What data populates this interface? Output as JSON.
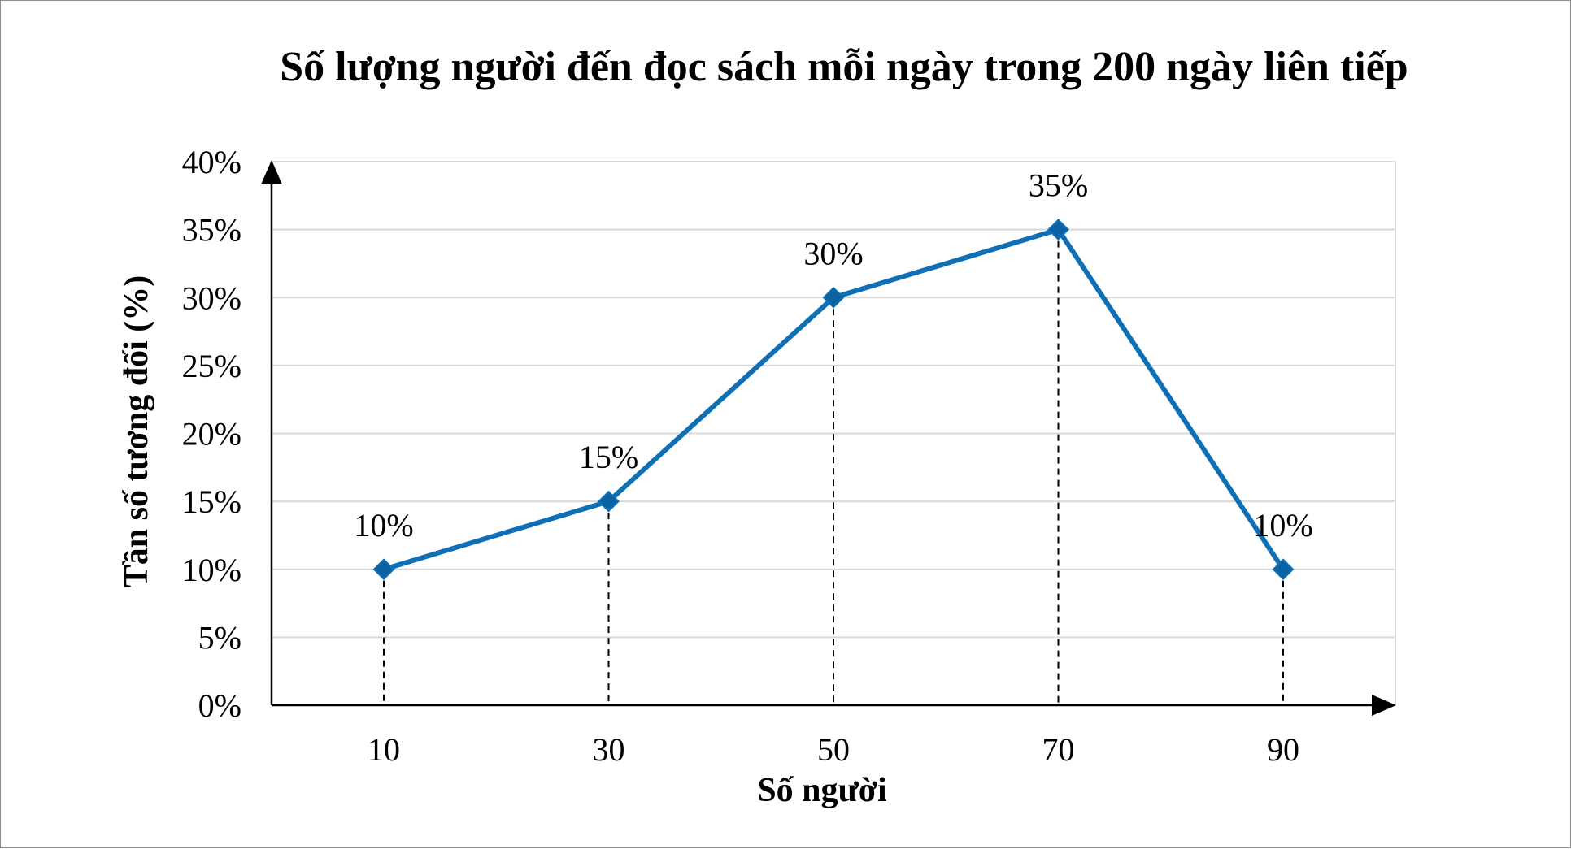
{
  "chart_data": {
    "type": "line",
    "title": "Số lượng người đến đọc sách mỗi ngày trong 200 ngày liên tiếp",
    "xlabel": "Số người",
    "ylabel": "Tần số tương đối (%)",
    "categories": [
      "10",
      "30",
      "50",
      "70",
      "90"
    ],
    "values": [
      10,
      15,
      30,
      35,
      10
    ],
    "data_labels": [
      "10%",
      "15%",
      "30%",
      "35%",
      "10%"
    ],
    "ylim": [
      0,
      40
    ],
    "ytick_labels": [
      "0%",
      "5%",
      "10%",
      "15%",
      "20%",
      "25%",
      "30%",
      "35%",
      "40%"
    ],
    "grid": true,
    "legend": "none",
    "line_color": "#0E6FB5",
    "marker": "diamond",
    "drop_lines": "dashed"
  }
}
